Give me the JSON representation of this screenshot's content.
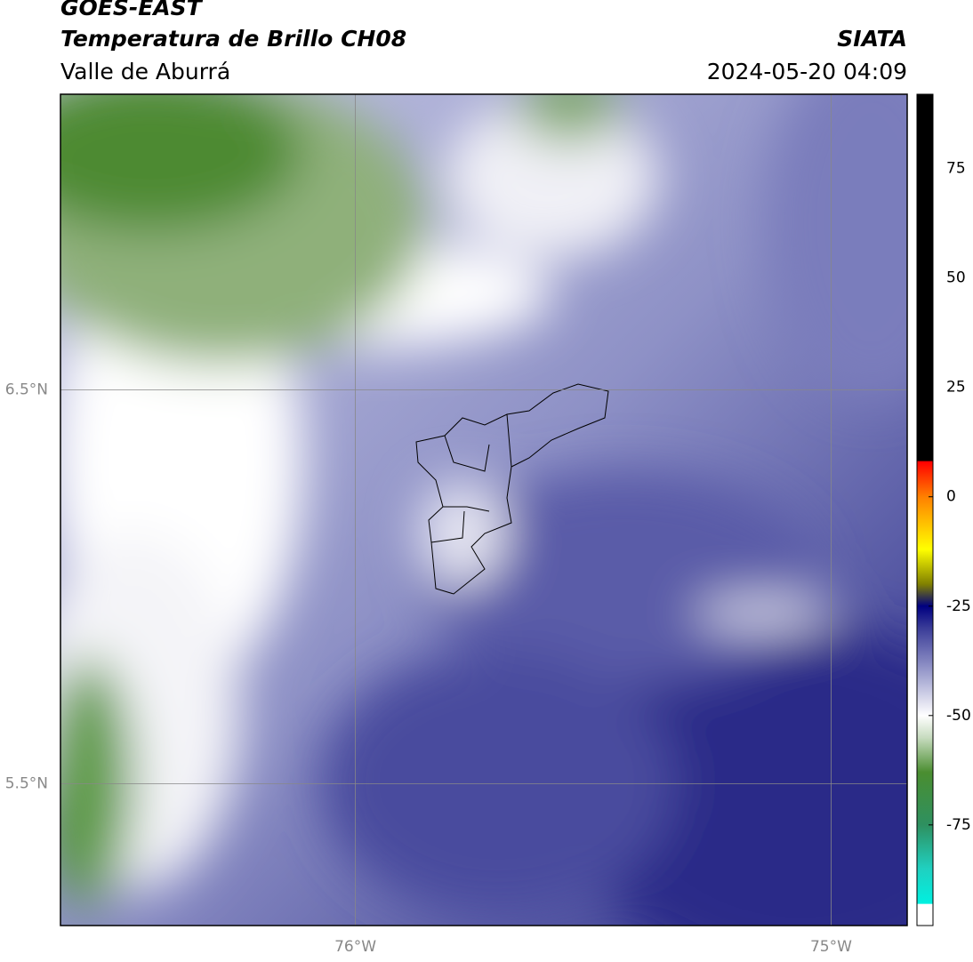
{
  "header": {
    "title": "GOES-EAST",
    "subtitle": "Temperatura de Brillo CH08",
    "region": "Valle de Aburrá",
    "agency": "SIATA",
    "datetime": "2024-05-20 04:09"
  },
  "map": {
    "xlim": [
      -76.62,
      -74.84
    ],
    "ylim": [
      5.14,
      7.25
    ],
    "xticks": [
      {
        "value": -76,
        "label": "76°W"
      },
      {
        "value": -75,
        "label": "75°W"
      }
    ],
    "yticks": [
      {
        "value": 5.5,
        "label": "5.5°N"
      },
      {
        "value": 6.5,
        "label": "6.5°N"
      }
    ],
    "grid": true
  },
  "colorbar": {
    "lim": [
      -98,
      92
    ],
    "ticks": [
      75,
      50,
      25,
      0,
      -25,
      -50,
      -75
    ],
    "stops": [
      {
        "value": 92,
        "color": "#000000"
      },
      {
        "value": 8.3,
        "color": "#000000"
      },
      {
        "value": 8,
        "color": "#ff0000"
      },
      {
        "value": 0,
        "color": "#ff8000"
      },
      {
        "value": -12,
        "color": "#ffff00"
      },
      {
        "value": -20,
        "color": "#808000"
      },
      {
        "value": -25,
        "color": "#000080"
      },
      {
        "value": -30,
        "color": "#3a3c98"
      },
      {
        "value": -40,
        "color": "#9a9ccc"
      },
      {
        "value": -50,
        "color": "#ffffff"
      },
      {
        "value": -55,
        "color": "#c8dcc0"
      },
      {
        "value": -63,
        "color": "#4a8e30"
      },
      {
        "value": -75,
        "color": "#2e9060"
      },
      {
        "value": -85,
        "color": "#20d0c0"
      },
      {
        "value": -93,
        "color": "#00f0e0"
      },
      {
        "value": -93.1,
        "color": "#ffffff"
      },
      {
        "value": -98,
        "color": "#ffffff"
      }
    ]
  }
}
